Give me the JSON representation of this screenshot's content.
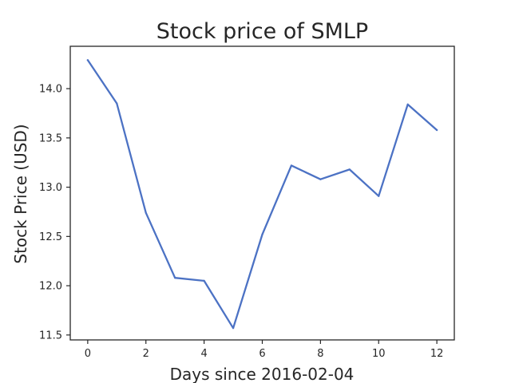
{
  "chart_data": {
    "type": "line",
    "title": "Stock price of SMLP",
    "xlabel": "Days since 2016-02-04",
    "ylabel": "Stock Price (USD)",
    "xlim": [
      -0.6,
      12.6
    ],
    "ylim": [
      11.45,
      14.43
    ],
    "x_ticks": [
      0,
      2,
      4,
      6,
      8,
      10,
      12
    ],
    "x_tick_labels": [
      "0",
      "2",
      "4",
      "6",
      "8",
      "10",
      "12"
    ],
    "y_ticks": [
      11.5,
      12.0,
      12.5,
      13.0,
      13.5,
      14.0
    ],
    "y_tick_labels": [
      "11.5",
      "12.0",
      "12.5",
      "13.0",
      "13.5",
      "14.0"
    ],
    "grid": false,
    "series": [
      {
        "color": "#4c72c4",
        "x": [
          0,
          1,
          2,
          3,
          4,
          5,
          6,
          7,
          8,
          9,
          10,
          11,
          12
        ],
        "y": [
          14.29,
          13.85,
          12.74,
          12.08,
          12.05,
          11.57,
          12.52,
          13.22,
          13.08,
          13.18,
          12.91,
          13.84,
          13.58
        ]
      }
    ]
  }
}
